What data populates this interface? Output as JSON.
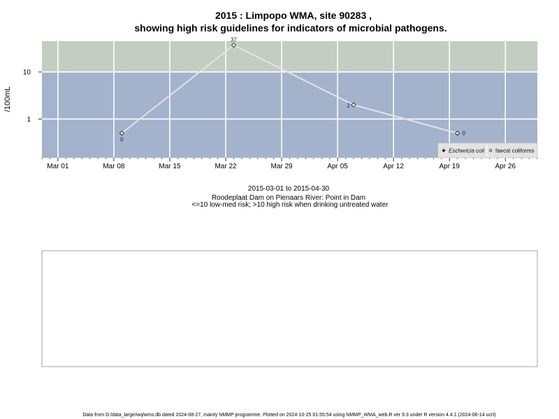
{
  "title_line1": "2015 : Limpopo WMA, site 90283 ,",
  "title_line2": "showing high risk guidelines for indicators of microbial pathogens.",
  "ylabel": "/100mL",
  "subtitle": {
    "date_range": "2015-03-01 to 2015-04-30",
    "location": "Roodeplaat Dam on Pienaars River: Point in Dam",
    "guideline": "<=10 low-med risk; >10 high risk when drinking untreated water"
  },
  "footer": "Data from D:/data_large/wq/wms.db dated 2024-08-27, mainly NMMP programme. Plotted on 2024-10-25 01:55:54 using NMMP_WMA_web.R ver 9.3 under R version 4.4.1 (2024-06-14 ucrt)",
  "colors": {
    "high_risk_band": "#c3cdc1",
    "low_risk_band": "#a3b3cc",
    "grid": "#ffffff",
    "series_line": "#e3e3e3"
  },
  "chart_data": {
    "type": "line",
    "x_tick_labels": [
      "Mar 01",
      "Mar 08",
      "Mar 15",
      "Mar 22",
      "Mar 29",
      "Apr 05",
      "Apr 12",
      "Apr 19",
      "Apr 26"
    ],
    "x_tick_dates": [
      "2015-03-01",
      "2015-03-08",
      "2015-03-15",
      "2015-03-22",
      "2015-03-29",
      "2015-04-05",
      "2015-04-12",
      "2015-04-19",
      "2015-04-26"
    ],
    "xlim": [
      "2015-02-27",
      "2015-04-30"
    ],
    "y_scale": "log",
    "y_tick_labels": [
      "1",
      "10"
    ],
    "y_tick_values": [
      1,
      10
    ],
    "ylim": [
      0.15,
      45
    ],
    "risk_threshold": 10,
    "series": [
      {
        "name": "faecal coliforms",
        "marker": "open-diamond",
        "points": [
          {
            "x": "2015-03-09",
            "y": 0.5,
            "label": "0"
          },
          {
            "x": "2015-03-23",
            "y": 37,
            "label": "37"
          },
          {
            "x": "2015-04-07",
            "y": 2,
            "label": "2"
          },
          {
            "x": "2015-04-20",
            "y": 0.5,
            "label": "0"
          }
        ]
      }
    ],
    "legend": {
      "position": "bottom-right",
      "entries": [
        {
          "label": "Eschericia coli",
          "marker": "filled-diamond",
          "italic": true
        },
        {
          "label": "faecal coliforms",
          "marker": "open-diamond",
          "italic": false
        }
      ]
    }
  }
}
